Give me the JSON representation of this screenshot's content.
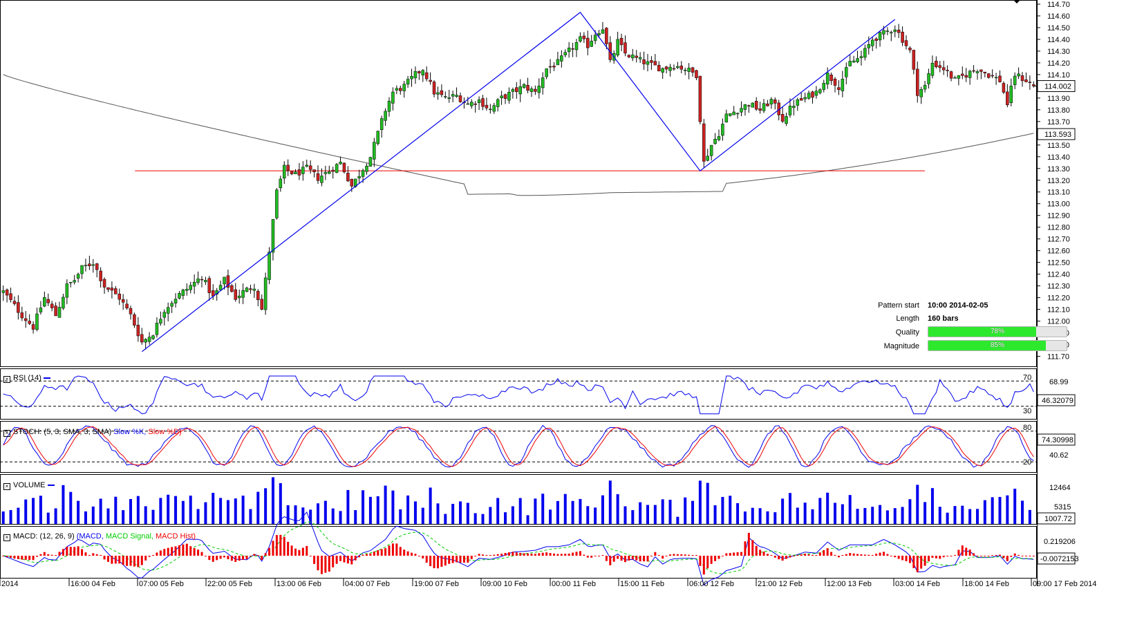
{
  "colors": {
    "bull": "#22bb22",
    "bear": "#cc2222",
    "blue": "#0000ee",
    "red": "#ee0000",
    "green": "#00cc00",
    "ma": "#555555",
    "grid": "#000000"
  },
  "price_pane": {
    "current_price_label": "114.002",
    "ma_price_label": "113.593",
    "y_ticks": [
      "114.70",
      "114.60",
      "114.50",
      "114.40",
      "114.30",
      "114.20",
      "114.10",
      "114.00",
      "113.90",
      "113.80",
      "113.70",
      "113.60",
      "113.50",
      "113.40",
      "113.30",
      "113.20",
      "113.10",
      "113.00",
      "112.90",
      "112.80",
      "112.70",
      "112.60",
      "112.50",
      "112.40",
      "112.30",
      "112.20",
      "112.10",
      "112.00",
      "111.90",
      "111.80",
      "111.70"
    ]
  },
  "pattern_info": {
    "start_label": "Pattern start",
    "start_value": "10:00 2014-02-05",
    "length_label": "Length",
    "length_value": "160 bars",
    "quality_label": "Quality",
    "quality_value": "78%",
    "quality_fraction": 0.78,
    "magnitude_label": "Magnitude",
    "magnitude_value": "85%",
    "magnitude_fraction": 0.85
  },
  "rsi": {
    "title_prefix": "RSI (14)",
    "level_high": "70",
    "level_low": "30",
    "axis_label": "68.99",
    "current_label": "46.32079"
  },
  "stoch": {
    "title_prefix": "STOCH: (5, 3, SMA, 3, SMA)",
    "title_k": "Slow %K,",
    "title_d": "Slow %D)",
    "level_high": "80",
    "level_low": "20",
    "axis_label": "40.62",
    "current_label": "74.30998"
  },
  "volume": {
    "title": "VOLUME",
    "axis_high": "12464",
    "axis_mid": "5315",
    "current_label": "1007.72"
  },
  "macd": {
    "title_prefix": "MACD: (12, 26, 9)",
    "title_macd": "(MACD,",
    "title_signal": "MACD Signal,",
    "title_hist": "MACD Hist)",
    "axis_label": "0.219206",
    "current_label": "-0.0072153"
  },
  "x_axis": {
    "labels": [
      "2014",
      "16:00 04 Feb",
      "07:00 05 Feb",
      "22:00 05 Feb",
      "13:00 06 Feb",
      "04:00 07 Feb",
      "19:00 07 Feb",
      "09:00 10 Feb",
      "00:00 11 Feb",
      "15:00 11 Feb",
      "06:00 12 Feb",
      "21:00 12 Feb",
      "12:00 13 Feb",
      "03:00 14 Feb",
      "18:00 14 Feb",
      "09:00 17 Feb 2014"
    ]
  },
  "chart_data": {
    "type": "candlestick",
    "instrument_unit": "price",
    "ylim": [
      111.65,
      114.7
    ],
    "pattern_points": [
      {
        "x": "10:00 2014-02-05",
        "y": 111.74
      },
      {
        "x": "11 Feb",
        "y": 114.63
      },
      {
        "x": "06:00 12 Feb",
        "y": 113.28
      },
      {
        "x": "13 Feb",
        "y": 114.57
      }
    ],
    "support_level": 113.28,
    "current_price": 114.002,
    "moving_average_last": 113.593,
    "anchors": [
      [
        0,
        112.25
      ],
      [
        5,
        112.05
      ],
      [
        8,
        111.95
      ],
      [
        11,
        112.2
      ],
      [
        14,
        112.05
      ],
      [
        17,
        112.3
      ],
      [
        19,
        112.35
      ],
      [
        21,
        112.45
      ],
      [
        24,
        112.5
      ],
      [
        27,
        112.3
      ],
      [
        31,
        112.2
      ],
      [
        34,
        112.05
      ],
      [
        37,
        111.82
      ],
      [
        40,
        111.9
      ],
      [
        43,
        112.1
      ],
      [
        46,
        112.2
      ],
      [
        50,
        112.3
      ],
      [
        53,
        112.38
      ],
      [
        56,
        112.2
      ],
      [
        59,
        112.35
      ],
      [
        62,
        112.2
      ],
      [
        64,
        112.25
      ],
      [
        67,
        112.3
      ],
      [
        69,
        112.1
      ],
      [
        71,
        112.6
      ],
      [
        73,
        113.1
      ],
      [
        75,
        113.3
      ],
      [
        78,
        113.25
      ],
      [
        81,
        113.3
      ],
      [
        84,
        113.22
      ],
      [
        87,
        113.28
      ],
      [
        90,
        113.35
      ],
      [
        93,
        113.15
      ],
      [
        96,
        113.3
      ],
      [
        98,
        113.4
      ],
      [
        100,
        113.6
      ],
      [
        102,
        113.8
      ],
      [
        104,
        113.95
      ],
      [
        107,
        114.0
      ],
      [
        110,
        114.1
      ],
      [
        112,
        114.15
      ],
      [
        115,
        113.95
      ],
      [
        118,
        113.9
      ],
      [
        121,
        113.92
      ],
      [
        124,
        113.85
      ],
      [
        127,
        113.88
      ],
      [
        130,
        113.8
      ],
      [
        133,
        113.9
      ],
      [
        136,
        113.95
      ],
      [
        139,
        114.0
      ],
      [
        142,
        113.95
      ],
      [
        145,
        114.15
      ],
      [
        148,
        114.2
      ],
      [
        151,
        114.3
      ],
      [
        154,
        114.4
      ],
      [
        156,
        114.35
      ],
      [
        158,
        114.45
      ],
      [
        160,
        114.5
      ],
      [
        162,
        114.2
      ],
      [
        164,
        114.38
      ],
      [
        166,
        114.28
      ],
      [
        168,
        114.25
      ],
      [
        170,
        114.22
      ],
      [
        173,
        114.18
      ],
      [
        176,
        114.15
      ],
      [
        179,
        114.18
      ],
      [
        182,
        114.15
      ],
      [
        185,
        114.1
      ],
      [
        187,
        113.35
      ],
      [
        189,
        113.5
      ],
      [
        191,
        113.6
      ],
      [
        193,
        113.75
      ],
      [
        196,
        113.8
      ],
      [
        199,
        113.85
      ],
      [
        202,
        113.8
      ],
      [
        205,
        113.88
      ],
      [
        208,
        113.72
      ],
      [
        211,
        113.85
      ],
      [
        214,
        113.9
      ],
      [
        217,
        113.95
      ],
      [
        220,
        114.1
      ],
      [
        223,
        114.0
      ],
      [
        226,
        114.2
      ],
      [
        229,
        114.25
      ],
      [
        232,
        114.4
      ],
      [
        235,
        114.45
      ],
      [
        238,
        114.5
      ],
      [
        240,
        114.4
      ],
      [
        242,
        114.3
      ],
      [
        244,
        113.95
      ],
      [
        246,
        114.0
      ],
      [
        248,
        114.2
      ],
      [
        251,
        114.15
      ],
      [
        254,
        114.05
      ],
      [
        257,
        114.1
      ],
      [
        260,
        114.15
      ],
      [
        263,
        114.1
      ],
      [
        266,
        114.05
      ],
      [
        268,
        113.85
      ],
      [
        270,
        114.1
      ],
      [
        273,
        114.05
      ],
      [
        275,
        114.0
      ]
    ]
  }
}
